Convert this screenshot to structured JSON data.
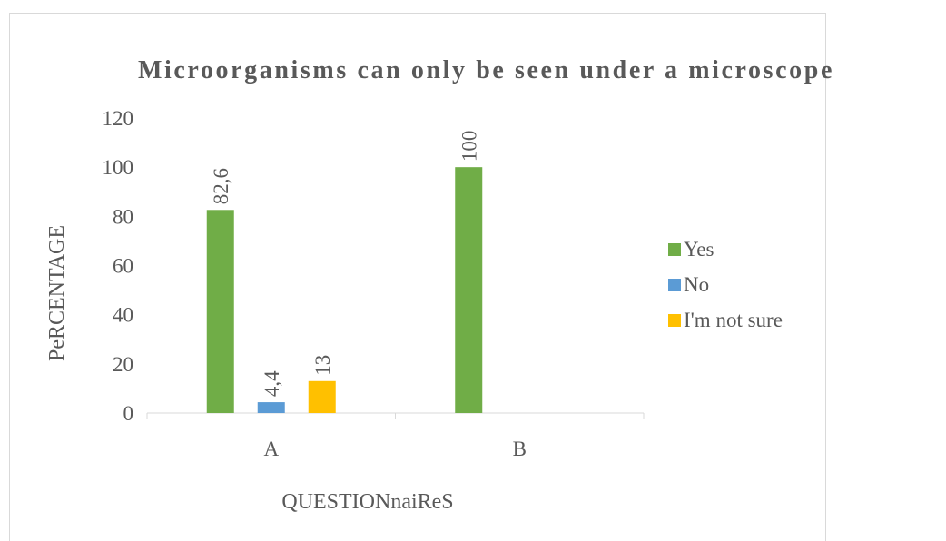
{
  "chart_data": {
    "type": "bar",
    "title": "Microorganisms can only be seen under a microscope",
    "xlabel": "QUESTIONnaiReS",
    "ylabel": "PeRCENTAGE",
    "categories": [
      "A",
      "B"
    ],
    "ylim": [
      0,
      120
    ],
    "yticks": [
      "0",
      "20",
      "40",
      "60",
      "80",
      "100",
      "120"
    ],
    "grid": false,
    "legend_position": "right",
    "series": [
      {
        "name": "Yes",
        "color": "#70ad47",
        "values": [
          82.6,
          100
        ],
        "labels": [
          "82,6",
          "100"
        ]
      },
      {
        "name": "No",
        "color": "#5b9bd5",
        "values": [
          4.4,
          null
        ],
        "labels": [
          "4,4",
          ""
        ]
      },
      {
        "name": "I'm not sure",
        "color": "#ffc000",
        "values": [
          13,
          null
        ],
        "labels": [
          "13",
          ""
        ]
      }
    ]
  }
}
